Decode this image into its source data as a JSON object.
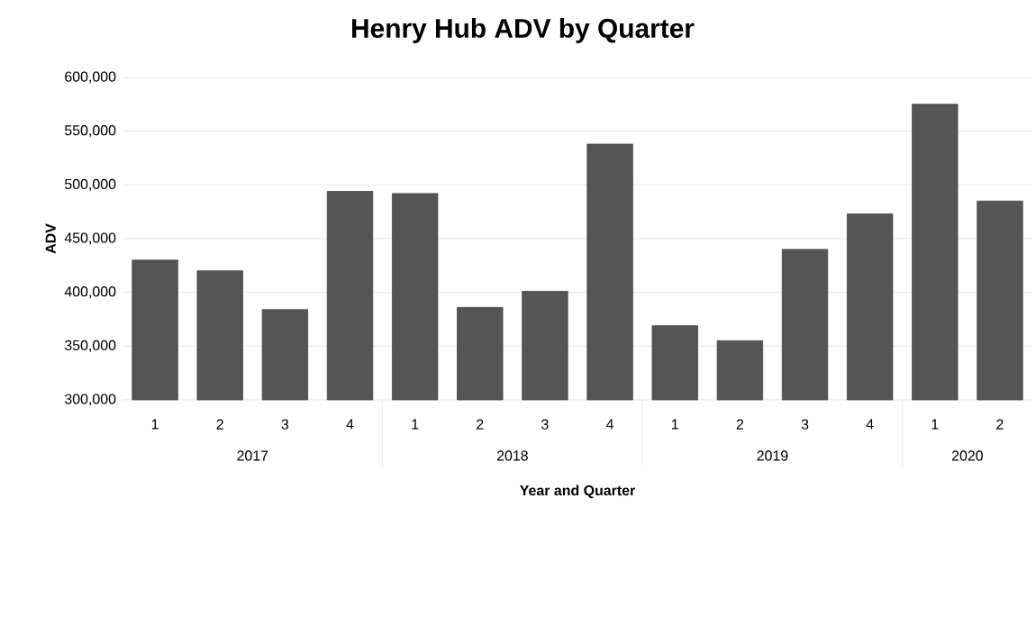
{
  "chart_data": {
    "type": "bar",
    "title": "Henry Hub ADV by Quarter",
    "xlabel": "Year and Quarter",
    "ylabel": "ADV",
    "categories": [
      "1",
      "2",
      "3",
      "4",
      "1",
      "2",
      "3",
      "4",
      "1",
      "2",
      "3",
      "4",
      "1",
      "2"
    ],
    "values": [
      430000,
      420000,
      384000,
      494000,
      492000,
      386000,
      401000,
      538000,
      369000,
      355000,
      440000,
      473000,
      575000,
      485000
    ],
    "color": "#555555",
    "annotations": [
      "2017",
      "2018",
      "2019",
      "2020"
    ],
    "ylim": [
      300000,
      600000
    ],
    "yticks": [
      {
        "value": 300000,
        "label": "300,000"
      },
      {
        "value": 350000,
        "label": "350,000"
      },
      {
        "value": 400000,
        "label": "400,000"
      },
      {
        "value": 450000,
        "label": "450,000"
      },
      {
        "value": 500000,
        "label": "500,000"
      },
      {
        "value": 550000,
        "label": "550,000"
      },
      {
        "value": 600000,
        "label": "600,000"
      }
    ],
    "grid": "y"
  }
}
